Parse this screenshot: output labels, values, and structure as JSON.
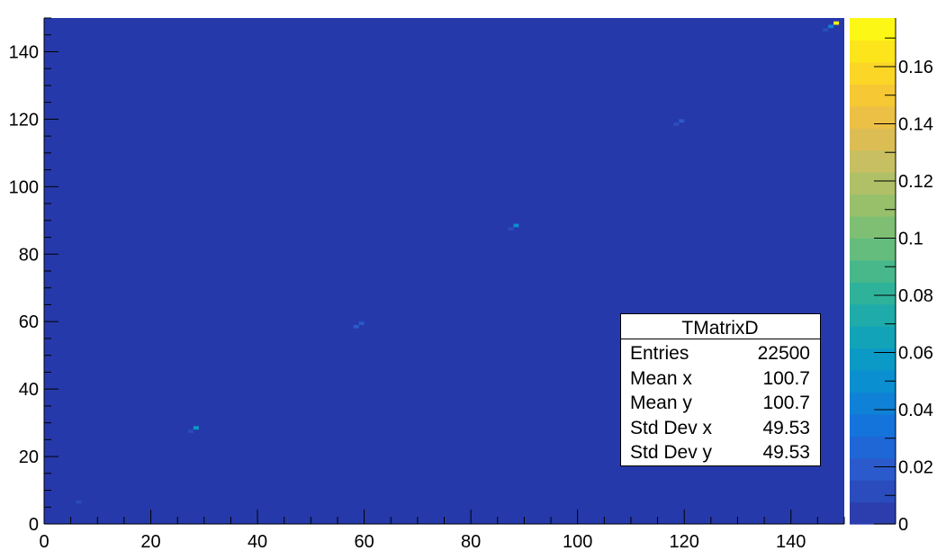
{
  "chart_data": {
    "type": "heatmap",
    "title": "",
    "xlabel": "",
    "ylabel": "",
    "xlim": [
      0,
      150
    ],
    "ylim": [
      0,
      150
    ],
    "zlim": [
      0,
      0.177
    ],
    "x_ticks": [
      "0",
      "20",
      "40",
      "60",
      "80",
      "100",
      "120",
      "140"
    ],
    "y_ticks": [
      "0",
      "20",
      "40",
      "60",
      "80",
      "100",
      "120",
      "140"
    ],
    "z_ticks": [
      "0",
      "0.02",
      "0.04",
      "0.06",
      "0.08",
      "0.1",
      "0.12",
      "0.14",
      "0.16"
    ],
    "background_color": "#2639aa",
    "palette": [
      "#2c3ead",
      "#2a4cbd",
      "#2a5acb",
      "#1f67d7",
      "#1474dc",
      "#0f82d7",
      "#0a8fd0",
      "#0b9ac5",
      "#13a3b8",
      "#1eaba9",
      "#2fb29a",
      "#48b88b",
      "#64bc7d",
      "#7ebf73",
      "#98c06b",
      "#b0c066",
      "#c7bf61",
      "#dbbd54",
      "#ecbf45",
      "#f6c834",
      "#fbd626",
      "#fde51c",
      "#fdf715"
    ],
    "cells": [
      {
        "x": 6,
        "y": 6,
        "z": 0.008
      },
      {
        "x": 27,
        "y": 27,
        "z": 0.012
      },
      {
        "x": 28,
        "y": 28,
        "z": 0.06
      },
      {
        "x": 58,
        "y": 58,
        "z": 0.018
      },
      {
        "x": 59,
        "y": 59,
        "z": 0.02
      },
      {
        "x": 87,
        "y": 87,
        "z": 0.015
      },
      {
        "x": 88,
        "y": 88,
        "z": 0.05
      },
      {
        "x": 118,
        "y": 118,
        "z": 0.012
      },
      {
        "x": 119,
        "y": 119,
        "z": 0.02
      },
      {
        "x": 146,
        "y": 146,
        "z": 0.012
      },
      {
        "x": 147,
        "y": 147,
        "z": 0.04
      },
      {
        "x": 148,
        "y": 148,
        "z": 0.17
      }
    ]
  },
  "stats": {
    "title": "TMatrixD",
    "rows": [
      {
        "label": "Entries",
        "value": "22500"
      },
      {
        "label": "Mean x",
        "value": "100.7"
      },
      {
        "label": "Mean y",
        "value": "100.7"
      },
      {
        "label": "Std Dev x",
        "value": "49.53"
      },
      {
        "label": "Std Dev y",
        "value": "49.53"
      }
    ]
  }
}
